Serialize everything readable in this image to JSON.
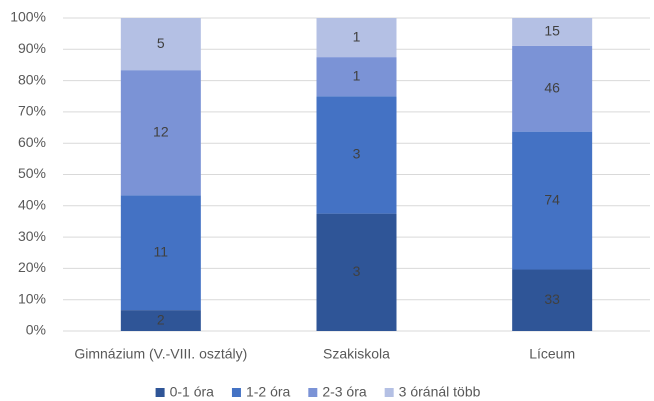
{
  "chart_data": {
    "type": "stacked_percent_bar",
    "categories": [
      "Gimnázium (V.-VIII. osztály)",
      "Szakiskola",
      "Líceum"
    ],
    "series": [
      {
        "name": "0-1 óra",
        "color": "#2f5597",
        "values": [
          2,
          3,
          33
        ]
      },
      {
        "name": "1-2 óra",
        "color": "#4472c4",
        "values": [
          11,
          3,
          74
        ]
      },
      {
        "name": "2-3 óra",
        "color": "#7b93d6",
        "values": [
          12,
          1,
          46
        ]
      },
      {
        "name": "3 óránál több",
        "color": "#b4c0e4",
        "values": [
          5,
          1,
          15
        ]
      }
    ],
    "ylim": [
      0,
      100
    ],
    "yticks": [
      {
        "value": 0,
        "label": "0%"
      },
      {
        "value": 10,
        "label": "10%"
      },
      {
        "value": 20,
        "label": "20%"
      },
      {
        "value": 30,
        "label": "30%"
      },
      {
        "value": 40,
        "label": "40%"
      },
      {
        "value": 50,
        "label": "50%"
      },
      {
        "value": 60,
        "label": "60%"
      },
      {
        "value": 70,
        "label": "70%"
      },
      {
        "value": 80,
        "label": "80%"
      },
      {
        "value": 90,
        "label": "90%"
      },
      {
        "value": 100,
        "label": "100%"
      }
    ],
    "grid": true,
    "legend": "bottom"
  }
}
